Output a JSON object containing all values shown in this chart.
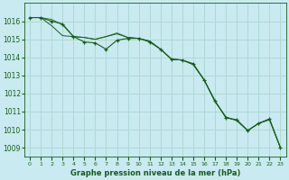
{
  "title": "Graphe pression niveau de la mer (hPa)",
  "bg_color": "#c8eaf0",
  "grid_color": "#b0d8d8",
  "line_color_dark": "#1a5c1a",
  "line_color_mid": "#2d7a2d",
  "xlim": [
    -0.5,
    23.5
  ],
  "ylim": [
    1008.5,
    1017.0
  ],
  "xtick_labels": [
    "0",
    "1",
    "2",
    "3",
    "4",
    "5",
    "6",
    "7",
    "8",
    "9",
    "10",
    "11",
    "12",
    "13",
    "14",
    "15",
    "16",
    "17",
    "18",
    "19",
    "20",
    "21",
    "22",
    "23"
  ],
  "yticks": [
    1009,
    1010,
    1011,
    1012,
    1013,
    1014,
    1015,
    1016
  ],
  "series_marked": [
    1016.2,
    1016.2,
    1016.0,
    1015.85,
    1015.15,
    1014.85,
    1014.8,
    1014.45,
    1014.95,
    1015.05,
    1015.05,
    1014.85,
    1014.45,
    1013.9,
    1013.85,
    1013.65,
    1012.75,
    1011.6,
    1010.65,
    1010.55,
    1009.95,
    1010.35,
    1010.6,
    1009.0
  ],
  "series_smooth": [
    1016.2,
    1016.2,
    1015.75,
    1015.2,
    1015.15,
    1015.1,
    1014.6,
    1014.7,
    1015.3,
    1015.1,
    1015.05,
    1014.9,
    1014.45,
    1013.9,
    1013.85,
    1013.6,
    1012.75,
    1011.55,
    1010.7,
    1010.5,
    1009.95,
    1010.35,
    1010.55,
    1009.0
  ],
  "series_smooth2": [
    1016.2,
    1016.2,
    1015.75,
    1015.2,
    1015.15,
    1015.1,
    1014.6,
    1014.7,
    1015.3,
    1015.1,
    1015.05,
    1014.9,
    1014.45,
    1013.9,
    1013.85,
    1013.6,
    1012.75,
    1011.55,
    1010.7,
    1010.5,
    1009.95,
    1010.35,
    1010.55,
    1009.0
  ]
}
